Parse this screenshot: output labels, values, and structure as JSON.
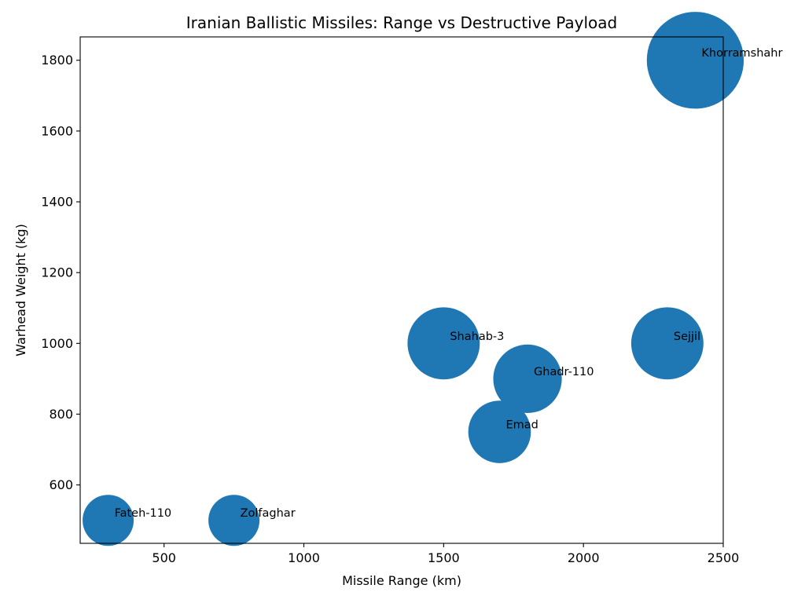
{
  "chart_data": {
    "type": "scatter",
    "title": "Iranian Ballistic Missiles: Range vs Destructive Payload",
    "xlabel": "Missile Range (km)",
    "ylabel": "Warhead Weight (kg)",
    "xlim": [
      200,
      2500
    ],
    "ylim": [
      435,
      1866
    ],
    "xticks": [
      500,
      1000,
      1500,
      2000,
      2500
    ],
    "yticks": [
      600,
      800,
      1000,
      1200,
      1400,
      1600,
      1800
    ],
    "grid": false,
    "marker_color": "#1f77b4",
    "marker_size_encodes": "Warhead Weight (kg)",
    "points": [
      {
        "label": "Fateh-110",
        "x": 300,
        "y": 500
      },
      {
        "label": "Zolfaghar",
        "x": 750,
        "y": 500
      },
      {
        "label": "Shahab-3",
        "x": 1500,
        "y": 1000
      },
      {
        "label": "Emad",
        "x": 1700,
        "y": 750
      },
      {
        "label": "Ghadr-110",
        "x": 1800,
        "y": 900
      },
      {
        "label": "Sejjil",
        "x": 2300,
        "y": 1000
      },
      {
        "label": "Khorramshahr",
        "x": 2400,
        "y": 1800
      }
    ]
  }
}
